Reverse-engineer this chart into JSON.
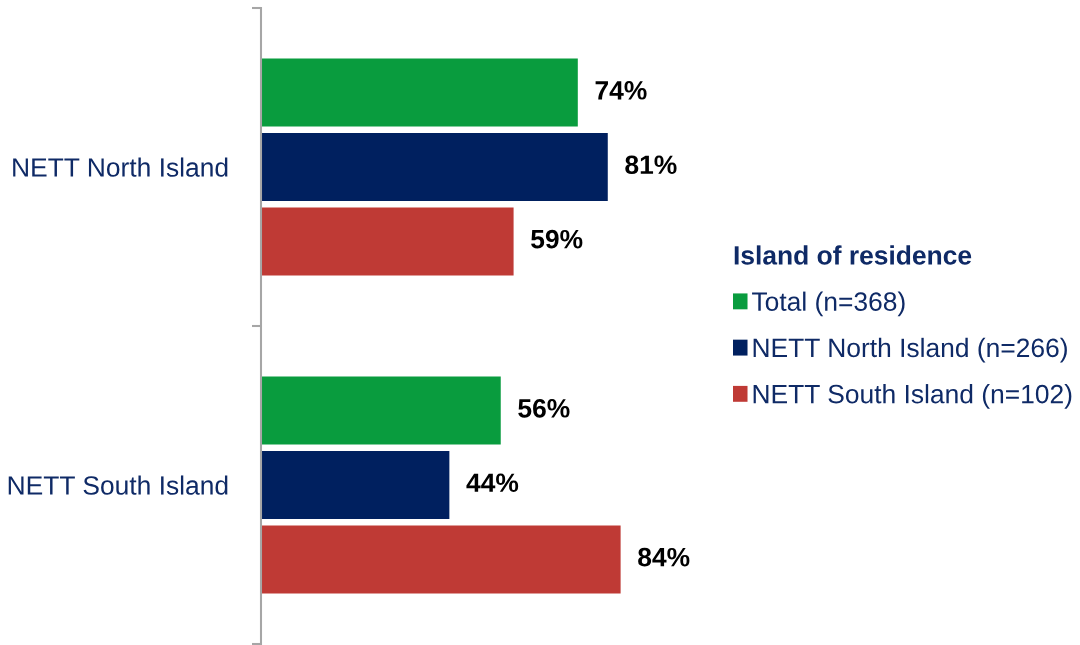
{
  "chart_data": {
    "type": "bar",
    "orientation": "horizontal",
    "categories": [
      "NETT North Island",
      "NETT South Island"
    ],
    "series": [
      {
        "name": "Total (n=368)",
        "color": "#099c3e",
        "values": [
          74,
          56
        ],
        "value_labels": [
          "74%",
          "56%"
        ]
      },
      {
        "name": "NETT North Island (n=266)",
        "color": "#00205f",
        "values": [
          81,
          44
        ],
        "value_labels": [
          "81%",
          "44%"
        ]
      },
      {
        "name": "NETT South Island (n=102)",
        "color": "#bf3a35",
        "values": [
          59,
          84
        ],
        "value_labels": [
          "59%",
          "84%"
        ]
      }
    ],
    "legend_title": "Island of residence",
    "legend": "right",
    "tick_labels": "y"
  }
}
